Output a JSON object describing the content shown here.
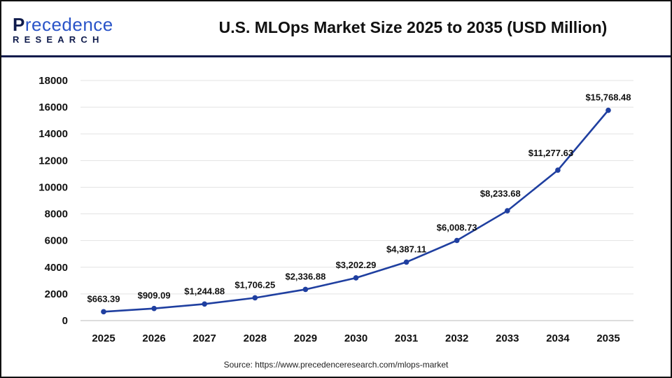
{
  "logo": {
    "top_initial": "P",
    "top_rest": "recedence",
    "bottom": "RESEARCH"
  },
  "header": {
    "title": "U.S. MLOps Market Size 2025 to 2035 (USD Million)"
  },
  "source": "Source: https://www.precedenceresearch.com/mlops-market",
  "chart_data": {
    "type": "line",
    "title": "U.S. MLOps Market Size 2025 to 2035 (USD Million)",
    "xlabel": "",
    "ylabel": "",
    "categories": [
      "2025",
      "2026",
      "2027",
      "2028",
      "2029",
      "2030",
      "2031",
      "2032",
      "2033",
      "2034",
      "2035"
    ],
    "values": [
      663.39,
      909.09,
      1244.88,
      1706.25,
      2336.88,
      3202.29,
      4387.11,
      6008.73,
      8233.68,
      11277.63,
      15768.48
    ],
    "data_labels": [
      "$663.39",
      "$909.09",
      "$1,244.88",
      "$1,706.25",
      "$2,336.88",
      "$3,202.29",
      "$4,387.11",
      "$6,008.73",
      "$8,233.68",
      "$11,277.63",
      "$15,768.48"
    ],
    "yticks": [
      "0",
      "2000",
      "4000",
      "6000",
      "8000",
      "10000",
      "12000",
      "14000",
      "16000",
      "18000"
    ],
    "ylim": [
      0,
      18000
    ],
    "grid": true,
    "line_color": "#1f3fa0"
  }
}
